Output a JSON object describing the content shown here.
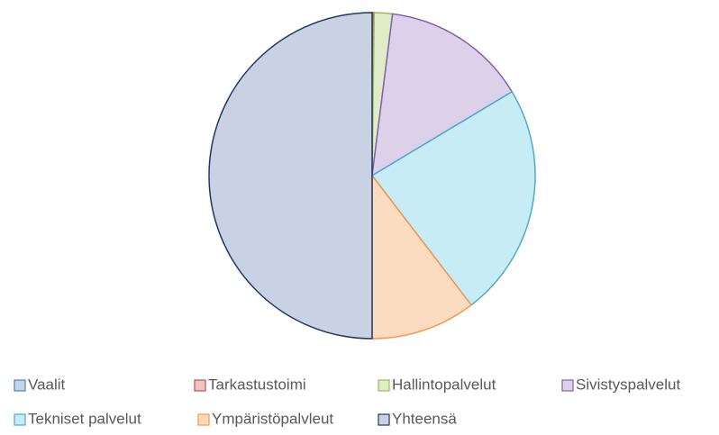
{
  "chart_data": {
    "type": "pie",
    "categories": [
      "Vaalit",
      "Tarkastustoimi",
      "Hallintopalvelut",
      "Sivistyspalvelut",
      "Tekniset palvelut",
      "Ympäristöpalvleut",
      "Yhteensä"
    ],
    "values": [
      0.1,
      0.1,
      1.8,
      14.4,
      23.2,
      10.4,
      50
    ],
    "colors": [
      "#c3d3e8",
      "#ebc4c3",
      "#e0ebc8",
      "#dcd0ea",
      "#c7ecf6",
      "#fcdcc0",
      "#c9d2e2"
    ],
    "edge_colors": [
      "#4f81bd",
      "#c0504d",
      "#9bbb59",
      "#8064a2",
      "#4bacc6",
      "#f79646",
      "#1f3864"
    ],
    "legend": "bottom"
  }
}
